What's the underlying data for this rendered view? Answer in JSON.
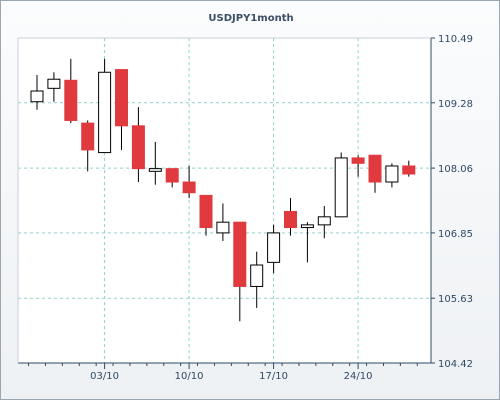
{
  "chart_data": {
    "type": "candlestick",
    "title": "USDJPY1month",
    "xlabel": "",
    "ylabel": "",
    "ylim": [
      104.42,
      110.49
    ],
    "y_ticks": [
      "110.49",
      "109.28",
      "108.06",
      "106.85",
      "105.63",
      "104.42"
    ],
    "x_ticks": [
      "03/10",
      "10/10",
      "17/10",
      "24/10"
    ],
    "grid": true,
    "colors": {
      "up": "#ffffff",
      "down": "#e0393e",
      "outline": "#000000",
      "grid": "#8fd3cf",
      "axis": "#2f4a66"
    },
    "candles": [
      {
        "open": 109.3,
        "close": 109.5,
        "high": 109.8,
        "low": 109.15
      },
      {
        "open": 109.55,
        "close": 109.72,
        "high": 109.85,
        "low": 109.3
      },
      {
        "open": 109.7,
        "close": 108.95,
        "high": 110.1,
        "low": 108.9
      },
      {
        "open": 108.9,
        "close": 108.4,
        "high": 108.95,
        "low": 108.0
      },
      {
        "open": 108.35,
        "close": 109.85,
        "high": 110.1,
        "low": 108.35
      },
      {
        "open": 109.9,
        "close": 108.85,
        "high": 109.9,
        "low": 108.4
      },
      {
        "open": 108.85,
        "close": 108.05,
        "high": 109.2,
        "low": 107.8
      },
      {
        "open": 108.0,
        "close": 108.05,
        "high": 108.55,
        "low": 107.75
      },
      {
        "open": 108.05,
        "close": 107.8,
        "high": 108.05,
        "low": 107.7
      },
      {
        "open": 107.8,
        "close": 107.6,
        "high": 108.1,
        "low": 107.5
      },
      {
        "open": 107.55,
        "close": 106.95,
        "high": 107.55,
        "low": 106.8
      },
      {
        "open": 106.85,
        "close": 107.05,
        "high": 107.4,
        "low": 106.7
      },
      {
        "open": 107.05,
        "close": 105.85,
        "high": 107.05,
        "low": 105.2
      },
      {
        "open": 105.85,
        "close": 106.25,
        "high": 106.5,
        "low": 105.45
      },
      {
        "open": 106.3,
        "close": 106.85,
        "high": 107.0,
        "low": 106.1
      },
      {
        "open": 107.25,
        "close": 106.95,
        "high": 107.5,
        "low": 106.8
      },
      {
        "open": 106.95,
        "close": 107.0,
        "high": 107.05,
        "low": 106.3
      },
      {
        "open": 107.0,
        "close": 107.15,
        "high": 107.35,
        "low": 106.75
      },
      {
        "open": 107.15,
        "close": 108.25,
        "high": 108.35,
        "low": 107.15
      },
      {
        "open": 108.25,
        "close": 108.15,
        "high": 108.3,
        "low": 107.9
      },
      {
        "open": 108.3,
        "close": 107.8,
        "high": 108.3,
        "low": 107.6
      },
      {
        "open": 107.8,
        "close": 108.1,
        "high": 108.15,
        "low": 107.7
      },
      {
        "open": 108.1,
        "close": 107.95,
        "high": 108.2,
        "low": 107.9
      }
    ],
    "x_tick_candle_index": [
      4,
      9,
      14,
      19
    ]
  }
}
